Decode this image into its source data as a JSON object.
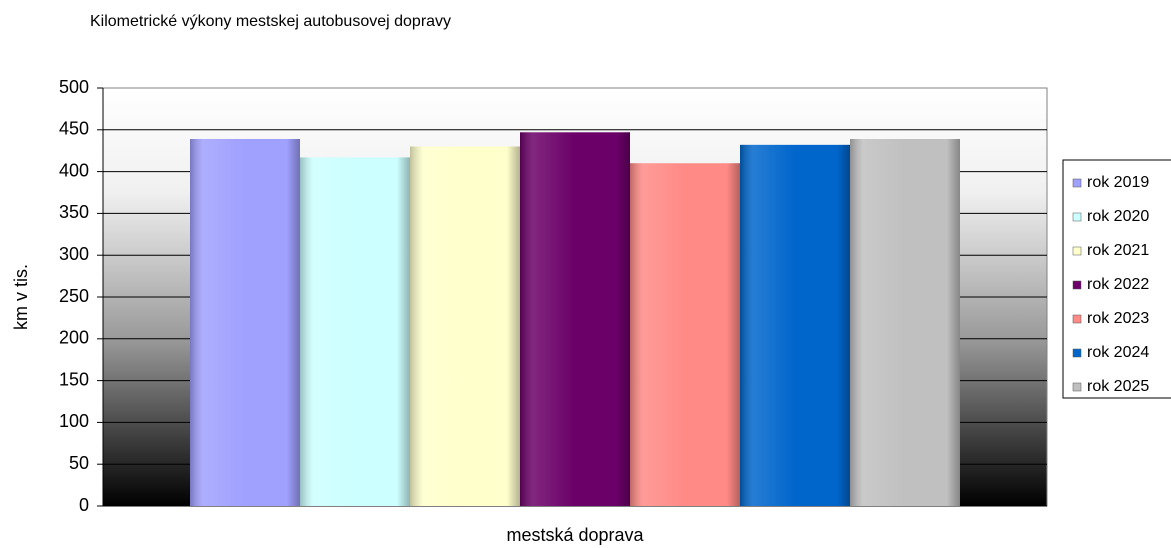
{
  "chart_data": {
    "type": "bar",
    "title": "Kilometrické výkony mestskej autobusovej dopravy",
    "y_label": "km v tis.",
    "categories": [
      "mestská doprava"
    ],
    "series": [
      {
        "name": "rok 2019",
        "color": "#a0a0ff",
        "values": [
          439
        ]
      },
      {
        "name": "rok 2020",
        "color": "#ccffff",
        "values": [
          417
        ]
      },
      {
        "name": "rok 2021",
        "color": "#ffffcc",
        "values": [
          430
        ]
      },
      {
        "name": "rok 2022",
        "color": "#6b0068",
        "values": [
          447
        ]
      },
      {
        "name": "rok 2023",
        "color": "#ff8a86",
        "values": [
          410
        ]
      },
      {
        "name": "rok 2024",
        "color": "#0066cc",
        "values": [
          432
        ]
      },
      {
        "name": "rok 2025",
        "color": "#c0c0c0",
        "values": [
          439
        ]
      }
    ],
    "ylim": [
      0,
      500
    ],
    "yticks": [
      0,
      50,
      100,
      150,
      200,
      250,
      300,
      350,
      400,
      450,
      500
    ],
    "grid": true,
    "legend": "right"
  }
}
